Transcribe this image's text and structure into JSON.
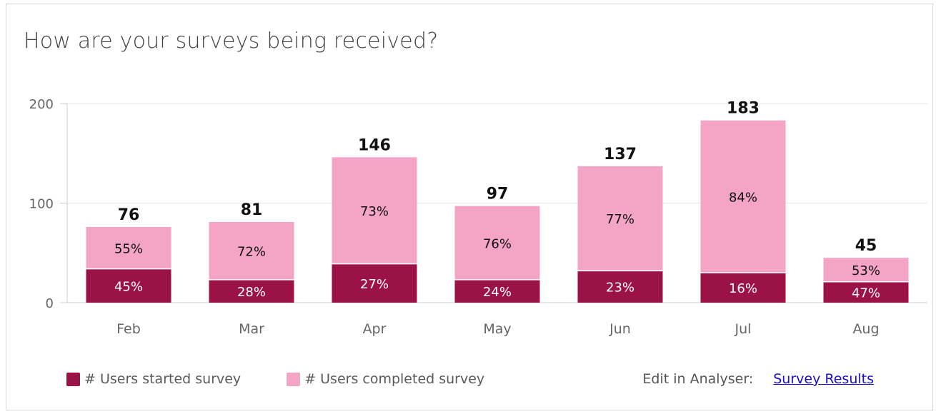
{
  "header": {
    "title": "How are your surveys being received?"
  },
  "colors": {
    "started": "#9b1246",
    "completed": "#f4a5c6",
    "grid": "#e6e6e6",
    "axis_text": "#666666"
  },
  "legend": {
    "items": [
      {
        "label": "# Users started survey",
        "color": "#9b1246"
      },
      {
        "label": "# Users completed survey",
        "color": "#f4a5c6"
      }
    ]
  },
  "footer": {
    "edit_label": "Edit in Analyser:",
    "link_label": "Survey Results"
  },
  "chart_data": {
    "type": "bar",
    "stacked": true,
    "title": "How are your surveys being received?",
    "xlabel": "",
    "ylabel": "",
    "ylim": [
      0,
      200
    ],
    "yticks": [
      0,
      100,
      200
    ],
    "grid": true,
    "legend_position": "bottom-left",
    "categories": [
      "Feb",
      "Mar",
      "Apr",
      "May",
      "Jun",
      "Jul",
      "Aug"
    ],
    "totals": [
      76,
      81,
      146,
      97,
      137,
      183,
      45
    ],
    "series": [
      {
        "name": "# Users started survey",
        "values": [
          34,
          23,
          39,
          23,
          32,
          30,
          21
        ],
        "labels": [
          "45%",
          "28%",
          "27%",
          "24%",
          "23%",
          "16%",
          "47%"
        ]
      },
      {
        "name": "# Users completed survey",
        "values": [
          42,
          58,
          107,
          74,
          105,
          153,
          24
        ],
        "labels": [
          "55%",
          "72%",
          "73%",
          "76%",
          "77%",
          "84%",
          "53%"
        ]
      }
    ]
  }
}
